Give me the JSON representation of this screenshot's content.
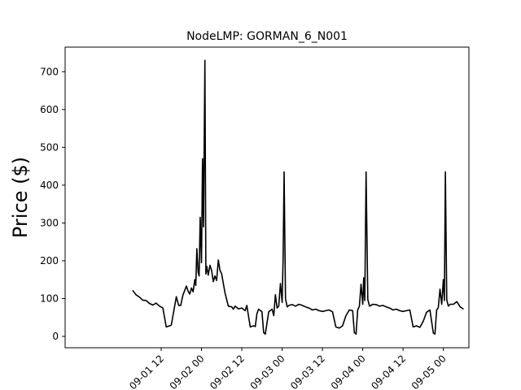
{
  "chart_data": {
    "type": "line",
    "title": "NodeLMP: GORMAN_6_N001",
    "xlabel": "",
    "ylabel": "Price ($)",
    "ylim": [
      -30,
      765
    ],
    "xlim_hours": [
      -16.6,
      103.6
    ],
    "x_ticks": [
      {
        "hours": 12,
        "label": "09-01 12"
      },
      {
        "hours": 24,
        "label": "09-02 00"
      },
      {
        "hours": 36,
        "label": "09-02 12"
      },
      {
        "hours": 48,
        "label": "09-03 00"
      },
      {
        "hours": 60,
        "label": "09-03 12"
      },
      {
        "hours": 72,
        "label": "09-04 00"
      },
      {
        "hours": 84,
        "label": "09-04 12"
      },
      {
        "hours": 96,
        "label": "09-05 00"
      }
    ],
    "y_ticks": [
      0,
      100,
      200,
      300,
      400,
      500,
      600,
      700
    ],
    "grid": false,
    "line_color": "#000000",
    "series": [
      {
        "x_hours": [
          3.5,
          4.5,
          5.5,
          6.5,
          7.5,
          8.5,
          9.5,
          10.5,
          11.5,
          12.5,
          13.5,
          14.5,
          15.0,
          15.5,
          16.5,
          17.2,
          17.8,
          18.5,
          19.5,
          20.0,
          20.5,
          21.0,
          21.5,
          22.0,
          22.3,
          22.6,
          23.0,
          23.3,
          23.6,
          24.0,
          24.3,
          24.6,
          25.0,
          25.3,
          25.6,
          26.0,
          26.5,
          27.0,
          27.5,
          28.0,
          28.5,
          29.0,
          29.5,
          30.0,
          31.0,
          32.0,
          33.0,
          33.5,
          34.0,
          35.0,
          36.0,
          37.0,
          37.5,
          38.5,
          39.5,
          40.0,
          40.5,
          41.0,
          42.0,
          42.5,
          43.0,
          44.0,
          45.0,
          45.5,
          46.0,
          46.5,
          47.0,
          47.5,
          48.0,
          48.3,
          48.6,
          49.0,
          49.5,
          50.0,
          51.0,
          52.0,
          53.0,
          54.0,
          55.0,
          56.0,
          57.0,
          58.0,
          59.0,
          60.0,
          61.0,
          62.0,
          63.0,
          64.0,
          65.0,
          66.0,
          67.0,
          68.0,
          69.0,
          69.5,
          70.0,
          70.5,
          71.0,
          71.5,
          72.0,
          72.3,
          72.6,
          73.0,
          73.5,
          74.0,
          75.0,
          76.0,
          77.0,
          78.0,
          79.0,
          80.0,
          81.0,
          82.0,
          83.0,
          84.0,
          85.0,
          86.0,
          87.0,
          88.0,
          89.0,
          90.0,
          91.0,
          92.0,
          93.0,
          93.5,
          94.0,
          94.5,
          95.0,
          95.5,
          96.0,
          96.3,
          96.6,
          97.0,
          97.5,
          98.0,
          99.0,
          100.0,
          101.0,
          102.0
        ],
        "y": [
          122,
          110,
          104,
          96,
          95,
          87,
          83,
          88,
          80,
          75,
          25,
          28,
          30,
          55,
          105,
          82,
          82,
          110,
          133,
          120,
          112,
          128,
          118,
          150,
          135,
          232,
          170,
          160,
          315,
          195,
          470,
          290,
          730,
          165,
          185,
          162,
          188,
          175,
          145,
          160,
          148,
          202,
          175,
          165,
          115,
          80,
          78,
          72,
          80,
          73,
          75,
          68,
          82,
          25,
          28,
          26,
          60,
          72,
          65,
          10,
          6,
          65,
          72,
          55,
          110,
          75,
          80,
          140,
          90,
          210,
          435,
          100,
          78,
          82,
          84,
          80,
          85,
          82,
          78,
          75,
          70,
          72,
          68,
          66,
          68,
          70,
          65,
          25,
          22,
          28,
          55,
          70,
          68,
          10,
          6,
          70,
          80,
          138,
          85,
          155,
          95,
          435,
          98,
          80,
          85,
          84,
          80,
          82,
          78,
          75,
          70,
          72,
          68,
          66,
          68,
          70,
          25,
          28,
          24,
          40,
          64,
          70,
          9,
          6,
          70,
          76,
          125,
          85,
          150,
          95,
          435,
          97,
          80,
          85,
          85,
          92,
          78,
          72
        ]
      }
    ]
  }
}
